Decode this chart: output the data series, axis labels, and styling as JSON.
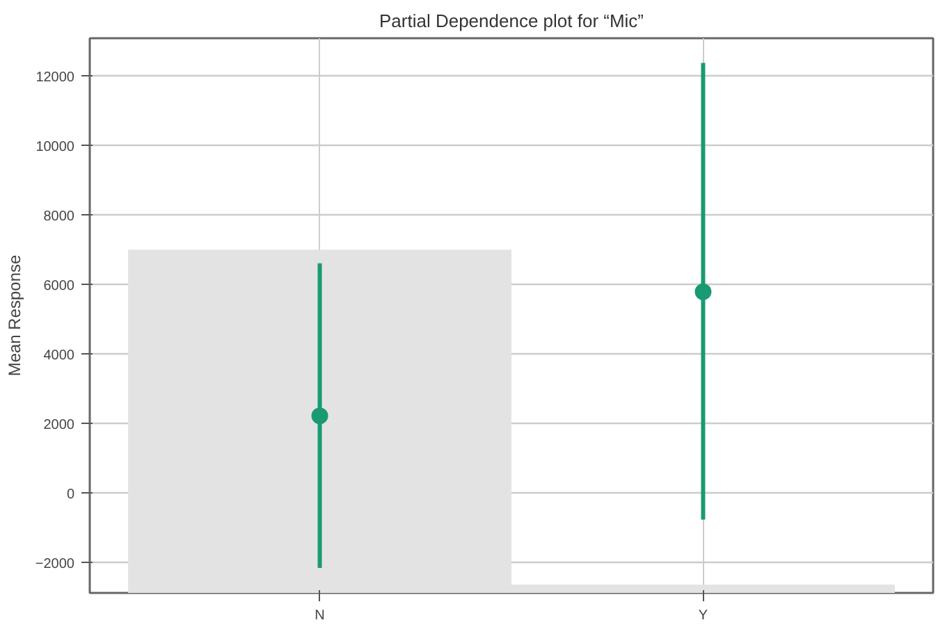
{
  "chart_data": {
    "type": "scatter",
    "title": "Partial Dependence plot for “Mic”",
    "ylabel": "Mean Response",
    "categories": [
      "N",
      "Y"
    ],
    "ylim": [
      -2870,
      13100
    ],
    "yticks": [
      -2000,
      0,
      2000,
      4000,
      6000,
      8000,
      10000,
      12000
    ],
    "grid": true,
    "marker": "circle",
    "series": [
      {
        "type": "bar",
        "color": "#e3e3e3",
        "values": [
          9880,
          240
        ],
        "base": [
          -2870,
          -2870
        ]
      },
      {
        "color": "#1a9a72",
        "values": [
          2230,
          5800
        ],
        "errors": [
          [
            -2150,
            6620
          ],
          [
            -760,
            12390
          ]
        ]
      }
    ]
  }
}
